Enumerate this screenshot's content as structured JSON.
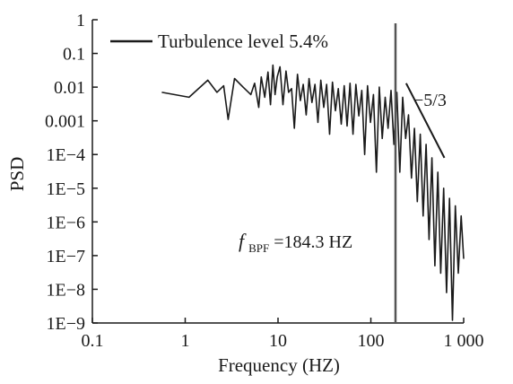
{
  "chart_data": {
    "type": "line",
    "title": "",
    "xlabel": "Frequency (HZ)",
    "ylabel": "PSD",
    "x_scale": "log",
    "y_scale": "log",
    "xlim": [
      0.1,
      1000
    ],
    "ylim": [
      1e-09,
      1
    ],
    "x_ticks": [
      0.1,
      1,
      10,
      100,
      1000
    ],
    "x_tick_labels": [
      "0.1",
      "1",
      "10",
      "100",
      "1 000"
    ],
    "y_ticks": [
      1,
      0.1,
      0.01,
      0.001,
      0.0001,
      1e-05,
      1e-06,
      1e-07,
      1e-08,
      1e-09
    ],
    "y_tick_labels": [
      "1",
      "0.1",
      "0.01",
      "0.001",
      "1E−4",
      "1E−5",
      "1E−6",
      "1E−7",
      "1E−8",
      "1E−9"
    ],
    "grid": false,
    "legend": {
      "position": "top-left",
      "entries": [
        "Turbulence level 5.4%"
      ]
    },
    "series": [
      {
        "name": "Turbulence level 5.4%",
        "color": "#1a1a1a",
        "x": [
          0.56,
          1.1,
          1.75,
          2.2,
          2.6,
          2.9,
          3.4,
          4.2,
          5.1,
          5.6,
          6.2,
          6.6,
          7.2,
          7.8,
          8.3,
          8.8,
          9.3,
          9.8,
          10.5,
          11.3,
          12.2,
          13.0,
          14.0,
          15.0,
          16.2,
          17.4,
          18.7,
          20.1,
          21.6,
          23.2,
          25.0,
          26.9,
          28.9,
          31.1,
          33.4,
          35.9,
          38.6,
          41.5,
          44.6,
          48.0,
          51.6,
          55.5,
          59.7,
          64.2,
          69.0,
          74.2,
          79.8,
          85.8,
          92.2,
          99.2,
          106.7,
          114.7,
          123.3,
          132.6,
          142.6,
          153.3,
          164.9,
          177.3,
          190.6,
          205.0,
          220.4,
          237.0,
          254.8,
          274.0,
          294.6,
          316.8,
          340.6,
          366.2,
          393.8,
          423.4,
          455.3,
          489.5,
          526.4,
          566.0,
          608.6,
          654.4,
          703.6,
          756.6,
          813.5,
          874.7,
          940.5,
          1000
        ],
        "y": [
          0.007,
          0.005,
          0.016,
          0.007,
          0.011,
          0.0011,
          0.018,
          0.01,
          0.006,
          0.013,
          0.0025,
          0.02,
          0.005,
          0.028,
          0.003,
          0.045,
          0.006,
          0.02,
          0.04,
          0.003,
          0.03,
          0.007,
          0.009,
          0.0006,
          0.024,
          0.004,
          0.012,
          0.0015,
          0.018,
          0.0035,
          0.012,
          0.0009,
          0.016,
          0.0025,
          0.012,
          0.0004,
          0.014,
          0.002,
          0.009,
          0.0008,
          0.011,
          0.0007,
          0.013,
          0.0004,
          0.012,
          0.0014,
          0.008,
          0.0001,
          0.011,
          0.0009,
          0.006,
          3e-05,
          0.01,
          0.0003,
          0.005,
          0.0006,
          0.008,
          0.0002,
          0.007,
          3e-05,
          0.005,
          0.0003,
          0.0015,
          2e-05,
          0.0006,
          4e-06,
          0.0004,
          1.5e-06,
          0.0002,
          3e-07,
          8e-05,
          5e-08,
          3e-05,
          3e-08,
          1e-05,
          8e-09,
          5e-06,
          1.2e-09,
          3e-06,
          3e-08,
          1.5e-06,
          8e-08
        ]
      }
    ],
    "annotations": {
      "vertical_line_x": 184.3,
      "bpf_symbol": "f",
      "bpf_subscript": "BPF",
      "bpf_value": "=184.3 HZ",
      "slope_label": "−5/3",
      "slope_line": {
        "x": [
          240,
          620
        ],
        "y": [
          0.013,
          8e-05
        ]
      }
    }
  }
}
